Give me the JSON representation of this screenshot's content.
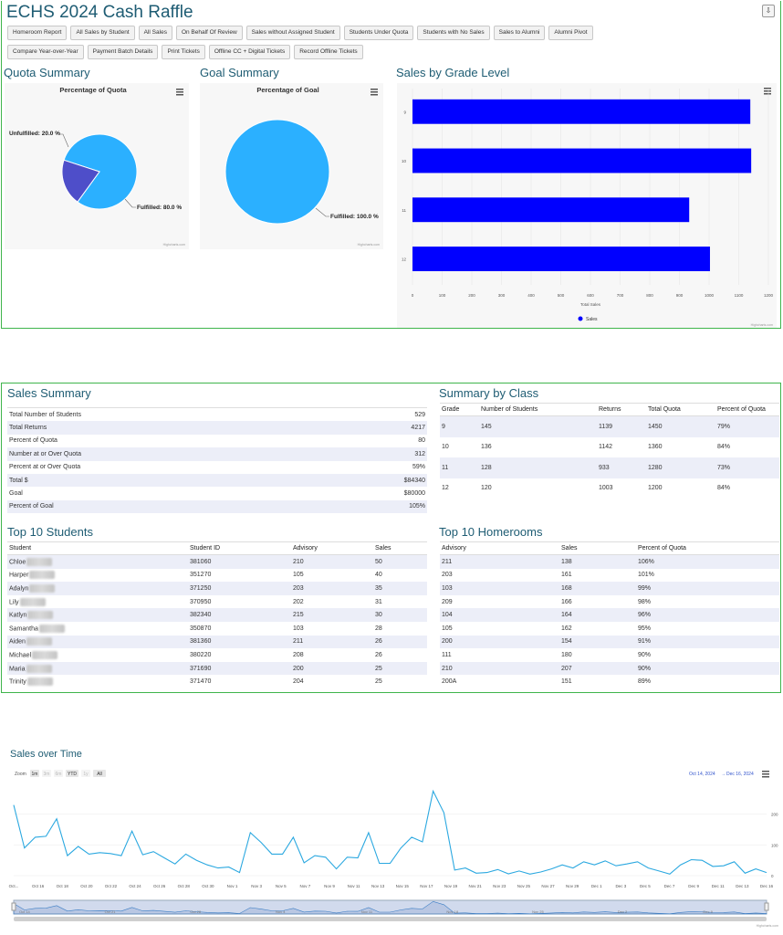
{
  "app": {
    "title": "ECHS 2024 Cash Raffle",
    "corner_icon": "export-icon"
  },
  "buttons_row1": [
    "Homeroom Report",
    "All Sales by Student",
    "All Sales",
    "On Behalf Of Review",
    "Sales without Assigned Student",
    "Students Under Quota",
    "Students with No Sales",
    "Sales to Alumni",
    "Alumni Pivot"
  ],
  "buttons_row2": [
    "Compare Year-over-Year",
    "Payment Batch Details",
    "Print Tickets",
    "Offline CC + Digital Tickets",
    "Record Offline Tickets"
  ],
  "sections": {
    "quota": "Quota Summary",
    "goal": "Goal Summary",
    "grade": "Sales by Grade Level",
    "sales_summary": "Sales Summary",
    "summary_class": "Summary by Class",
    "top_students": "Top 10 Students",
    "top_homerooms": "Top 10 Homerooms",
    "over_time": "Sales over Time"
  },
  "credit": "Highcharts.com",
  "chart_data": [
    {
      "type": "pie",
      "title": "Percentage of Quota",
      "slices": [
        {
          "label": "Fulfilled: 80.0 %",
          "value": 80.0,
          "color": "#2bb0ff"
        },
        {
          "label": "Unfulfilled: 20.0 %",
          "value": 20.0,
          "color": "#4e4ec9"
        }
      ]
    },
    {
      "type": "pie",
      "title": "Percentage of Goal",
      "slices": [
        {
          "label": "Fulfilled: 100.0 %",
          "value": 100.0,
          "color": "#2bb0ff"
        }
      ]
    },
    {
      "type": "bar",
      "orientation": "horizontal",
      "categories": [
        "9",
        "10",
        "11",
        "12"
      ],
      "series": [
        {
          "name": "Sales",
          "values": [
            1139,
            1142,
            933,
            1003
          ],
          "color": "#0000ff"
        }
      ],
      "xlabel": "Total Sales",
      "xlim": [
        0,
        1200
      ],
      "ticks": [
        0,
        100,
        200,
        300,
        400,
        500,
        600,
        700,
        800,
        900,
        1000,
        1100,
        1200
      ],
      "legend": "bottom-center"
    },
    {
      "type": "line",
      "zoom_label": "Zoom",
      "zoom_buttons": [
        "1m",
        "3m",
        "6m",
        "YTD",
        "1y",
        "All"
      ],
      "zoom_enabled": [
        true,
        false,
        false,
        true,
        false,
        true
      ],
      "range_from": "Oct 14, 2024",
      "range_sep": "→",
      "range_to": "Dec 16, 2024",
      "ylim": [
        0,
        300
      ],
      "y_ticks": [
        "0",
        "100",
        "200"
      ],
      "x_ticks": [
        "Oct...",
        "Oct 16",
        "Oct 18",
        "Oct 20",
        "Oct 22",
        "Oct 24",
        "Oct 26",
        "Oct 28",
        "Oct 30",
        "Nov 1",
        "Nov 3",
        "Nov 5",
        "Nov 7",
        "Nov 9",
        "Nov 11",
        "Nov 13",
        "Nov 15",
        "Nov 17",
        "Nov 19",
        "Nov 21",
        "Nov 23",
        "Nov 25",
        "Nov 27",
        "Nov 29",
        "Dec 1",
        "Dec 3",
        "Dec 5",
        "Dec 7",
        "Dec 9",
        "Dec 11",
        "Dec 13",
        "Dec 16"
      ],
      "navigator_ticks": [
        "Oct 14",
        "Oct 21",
        "Oct 28",
        "Nov 4",
        "Nov 11",
        "Nov 18",
        "Nov 25",
        "Dec 2",
        "Dec 9"
      ],
      "values": [
        230,
        90,
        125,
        128,
        185,
        65,
        95,
        70,
        75,
        72,
        65,
        145,
        68,
        78,
        58,
        38,
        70,
        50,
        35,
        25,
        28,
        10,
        140,
        108,
        70,
        70,
        125,
        42,
        65,
        60,
        22,
        60,
        58,
        140,
        40,
        40,
        90,
        125,
        110,
        275,
        205,
        18,
        25,
        8,
        10,
        20,
        6,
        15,
        5,
        12,
        22,
        35,
        25,
        45,
        35,
        48,
        32,
        38,
        45,
        25,
        15,
        5,
        35,
        52,
        50,
        30,
        32,
        45,
        8,
        22,
        10
      ]
    }
  ],
  "sales_summary": [
    {
      "label": "Total Number of Students",
      "value": "529"
    },
    {
      "label": "Total Returns",
      "value": "4217"
    },
    {
      "label": "Percent of Quota",
      "value": "80"
    },
    {
      "label": "Number at or Over Quota",
      "value": "312"
    },
    {
      "label": "Percent at or Over Quota",
      "value": "59%"
    },
    {
      "label": "Total $",
      "value": "$84340"
    },
    {
      "label": "Goal",
      "value": "$80000"
    },
    {
      "label": "Percent of Goal",
      "value": "105%"
    }
  ],
  "summary_by_class": {
    "headers": [
      "Grade",
      "Number of Students",
      "Returns",
      "Total Quota",
      "Percent of Quota"
    ],
    "rows": [
      [
        "9",
        "145",
        "1139",
        "1450",
        "79%"
      ],
      [
        "10",
        "136",
        "1142",
        "1360",
        "84%"
      ],
      [
        "11",
        "128",
        "933",
        "1280",
        "73%"
      ],
      [
        "12",
        "120",
        "1003",
        "1200",
        "84%"
      ]
    ]
  },
  "top_students": {
    "headers": [
      "Student",
      "Student ID",
      "Advisory",
      "Sales"
    ],
    "rows": [
      [
        "Chloe",
        "381060",
        "210",
        "50"
      ],
      [
        "Harper",
        "351270",
        "105",
        "40"
      ],
      [
        "Adalyn",
        "371250",
        "203",
        "35"
      ],
      [
        "Lily",
        "370950",
        "202",
        "31"
      ],
      [
        "Katlyn",
        "382340",
        "215",
        "30"
      ],
      [
        "Samantha",
        "350870",
        "103",
        "28"
      ],
      [
        "Aiden",
        "381360",
        "211",
        "26"
      ],
      [
        "Michael",
        "380220",
        "208",
        "26"
      ],
      [
        "Maria",
        "371690",
        "200",
        "25"
      ],
      [
        "Trinity",
        "371470",
        "204",
        "25"
      ]
    ]
  },
  "top_homerooms": {
    "headers": [
      "Advisory",
      "Sales",
      "Percent of Quota"
    ],
    "rows": [
      [
        "211",
        "138",
        "106%"
      ],
      [
        "203",
        "161",
        "101%"
      ],
      [
        "103",
        "168",
        "99%"
      ],
      [
        "209",
        "166",
        "98%"
      ],
      [
        "104",
        "164",
        "96%"
      ],
      [
        "105",
        "162",
        "95%"
      ],
      [
        "200",
        "154",
        "91%"
      ],
      [
        "111",
        "180",
        "90%"
      ],
      [
        "210",
        "207",
        "90%"
      ],
      [
        "200A",
        "151",
        "89%"
      ]
    ]
  }
}
